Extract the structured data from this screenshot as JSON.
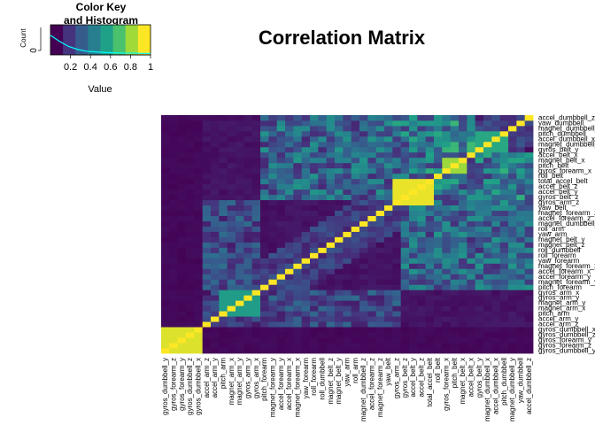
{
  "chart_data": {
    "type": "heatmap",
    "title": "Correlation Matrix",
    "color_key": {
      "title_line1": "Color Key",
      "title_line2": "and Histogram",
      "xlabel": "Value",
      "ylabel": "Count",
      "x_ticks": [
        "0.2",
        "0.4",
        "0.6",
        "0.8",
        "1"
      ],
      "y_ticks": [
        "0"
      ],
      "range": [
        0,
        1
      ],
      "palette": [
        "#440154",
        "#46337e",
        "#365c8d",
        "#277f8e",
        "#1fa187",
        "#4ac16d",
        "#a0da39",
        "#fde725"
      ],
      "histogram_line_color": "#00ffff"
    },
    "grid": "off",
    "legend_placement": "top-left",
    "column_labels": [
      "gyros_dumbbell_y",
      "gyros_forearm_z",
      "gyros_forearm_y",
      "gyros_dumbbell_z",
      "gyros_dumbbell_x",
      "accel_arm_z",
      "accel_arm_y",
      "pitch_arm",
      "magnet_arm_x",
      "magnet_arm_y",
      "gyros_arm_y",
      "gyros_arm_x",
      "pitch_forearm",
      "magnet_forearm_y",
      "accel_forearm_y",
      "accel_forearm_x",
      "magnet_forearm_x",
      "yaw_forearm",
      "roll_forearm",
      "roll_dumbbell",
      "magnet_belt_z",
      "magnet_belt_y",
      "yaw_arm",
      "roll_arm",
      "magnet_dumbbell_z",
      "accel_forearm_z",
      "magnet_forearm_z",
      "yaw_belt",
      "gyros_arm_z",
      "gyros_belt_z",
      "accel_belt_y",
      "accel_belt_z",
      "total_accel_belt",
      "roll_belt",
      "gyros_forearm_x",
      "pitch_belt",
      "magnet_belt_x",
      "accel_belt_x",
      "gyros_belt_y",
      "magnet_dumbbell_x",
      "accel_dumbbell_x",
      "pitch_dumbbell",
      "magnet_dumbbell_y",
      "yaw_dumbbell",
      "accel_dumbbell_z"
    ],
    "row_labels": [
      "gyros_dumbbell_y",
      "gyros_forearm_z",
      "gyros_forearm_y",
      "gyros_dumbbell_z",
      "gyros_dumbbell_x",
      "accel_arm_z",
      "accel_arm_y",
      "pitch_arm",
      "magnet_arm_x",
      "magnet_arm_y",
      "gyros_arm_y",
      "gyros_arm_x",
      "pitch_forearm",
      "magnet_forearm_y",
      "accel_forearm_y",
      "accel_forearm_x",
      "magnet_forearm_x",
      "yaw_forearm",
      "roll_forearm",
      "roll_dumbbell",
      "magnet_belt_z",
      "magnet_belt_y",
      "yaw_arm",
      "roll_arm",
      "magnet_dumbbell_z",
      "accel_forearm_z",
      "magnet_forearm_z",
      "yaw_belt",
      "gyros_arm_z",
      "gyros_belt_z",
      "accel_belt_y",
      "accel_belt_z",
      "total_accel_belt",
      "roll_belt",
      "gyros_forearm_x",
      "pitch_belt",
      "magnet_belt_x",
      "accel_belt_x",
      "gyros_belt_y",
      "magnet_dumbbell_x",
      "accel_dumbbell_x",
      "pitch_dumbbell",
      "magnet_dumbbell_y",
      "yaw_dumbbell",
      "accel_dumbbell_z"
    ],
    "blocks": [
      {
        "from": 0,
        "to": 4,
        "value": 0.95
      },
      {
        "from": 7,
        "to": 11,
        "value": 0.55
      },
      {
        "from": 28,
        "to": 32,
        "value": 0.97
      },
      {
        "from": 34,
        "to": 36,
        "value": 0.85
      },
      {
        "from": 38,
        "to": 41,
        "value": 0.6
      }
    ],
    "bands": [
      {
        "rows": [
          0,
          4
        ],
        "cols": [
          5,
          44
        ],
        "value": 0.02
      },
      {
        "rows": [
          5,
          11
        ],
        "cols": [
          12,
          28
        ],
        "value": 0.22
      },
      {
        "rows": [
          12,
          27
        ],
        "cols": [
          29,
          44
        ],
        "value": 0.32
      },
      {
        "rows": [
          28,
          33
        ],
        "cols": [
          33,
          44
        ],
        "value": 0.38
      },
      {
        "rows": [
          38,
          44
        ],
        "cols": [
          29,
          37
        ],
        "value": 0.42
      }
    ],
    "diagonal_value": 1
  }
}
